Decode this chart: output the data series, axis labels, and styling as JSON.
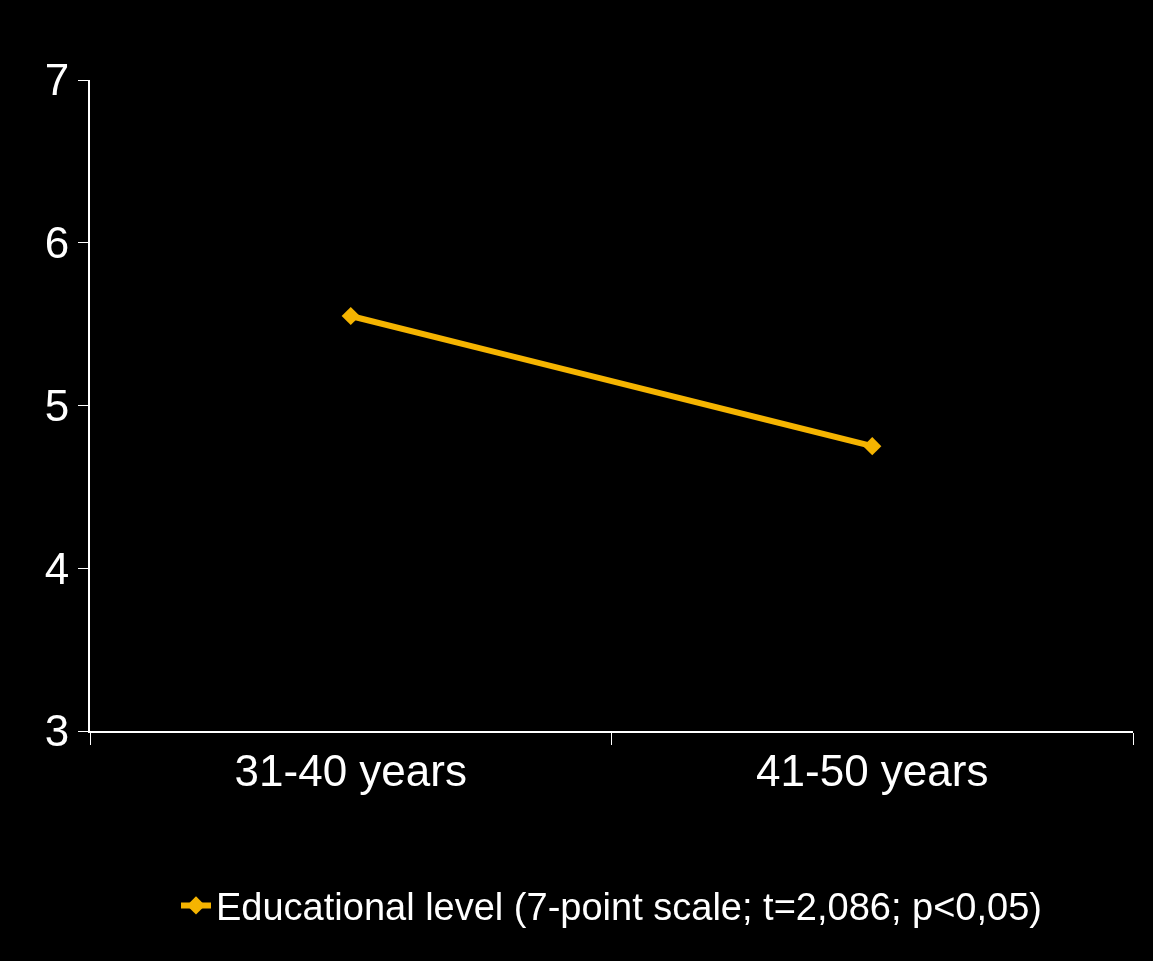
{
  "chart_data": {
    "type": "line",
    "categories": [
      "31-40 years",
      "41-50 years"
    ],
    "series": [
      {
        "name": "Educational level (7-point scale; t=2,086; p<0,05)",
        "color": "#f5b400",
        "values": [
          5.55,
          4.75
        ]
      }
    ],
    "ylim": [
      3,
      7
    ],
    "yticks": [
      3,
      4,
      5,
      6,
      7
    ],
    "grid": false,
    "legend": "bottom",
    "marker": "diamond",
    "line_style": "solid"
  }
}
